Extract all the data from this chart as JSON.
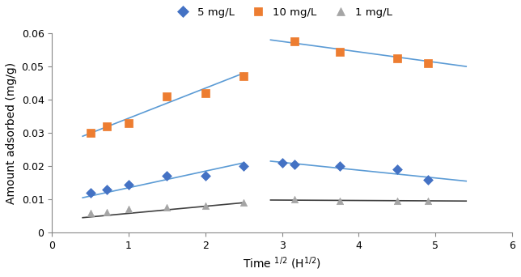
{
  "xlabel": "Time $^{1/2}$ (H$^{1/2}$)",
  "ylabel": "Amount adsorbed (mg/g)",
  "xlim": [
    0,
    6
  ],
  "ylim": [
    0,
    0.06
  ],
  "yticks": [
    0,
    0.01,
    0.02,
    0.03,
    0.04,
    0.05,
    0.06
  ],
  "xticks": [
    0,
    1,
    2,
    3,
    4,
    5,
    6
  ],
  "series_5mgL": {
    "label": "5 mg/L",
    "color": "#4472C4",
    "marker": "D",
    "markersize": 6,
    "x": [
      0.5,
      0.71,
      1.0,
      1.5,
      2.0,
      2.5,
      3.0,
      3.16,
      3.75,
      4.5,
      4.9
    ],
    "y": [
      0.012,
      0.013,
      0.0145,
      0.017,
      0.017,
      0.02,
      0.021,
      0.0205,
      0.02,
      0.019,
      0.016
    ]
  },
  "line_5mgL_seg1": {
    "color": "#5B9BD5",
    "x": [
      0.4,
      2.5
    ],
    "y": [
      0.0105,
      0.021
    ]
  },
  "line_5mgL_seg2": {
    "color": "#5B9BD5",
    "x": [
      2.85,
      5.4
    ],
    "y": [
      0.0215,
      0.0155
    ]
  },
  "series_10mgL": {
    "label": "10 mg/L",
    "color": "#ED7D31",
    "marker": "s",
    "markersize": 7,
    "x": [
      0.5,
      0.71,
      1.0,
      1.5,
      2.0,
      2.5,
      3.16,
      3.75,
      4.5,
      4.9
    ],
    "y": [
      0.03,
      0.032,
      0.033,
      0.041,
      0.042,
      0.047,
      0.0575,
      0.0545,
      0.0525,
      0.051
    ]
  },
  "line_10mgL_seg1": {
    "color": "#5B9BD5",
    "x": [
      0.4,
      2.5
    ],
    "y": [
      0.029,
      0.048
    ]
  },
  "line_10mgL_seg2": {
    "color": "#5B9BD5",
    "x": [
      2.85,
      5.4
    ],
    "y": [
      0.058,
      0.05
    ]
  },
  "series_1mgL": {
    "label": "1 mg/L",
    "color": "#A5A5A5",
    "marker": "^",
    "markersize": 6,
    "x": [
      0.5,
      0.71,
      1.0,
      1.5,
      2.0,
      2.5,
      3.16,
      3.75,
      4.5,
      4.9
    ],
    "y": [
      0.006,
      0.0062,
      0.007,
      0.0075,
      0.008,
      0.009,
      0.01,
      0.0095,
      0.0095,
      0.0095
    ]
  },
  "line_1mgL_seg1": {
    "color": "#404040",
    "x": [
      0.4,
      2.5
    ],
    "y": [
      0.0045,
      0.009
    ]
  },
  "line_1mgL_seg2": {
    "color": "#404040",
    "x": [
      2.85,
      5.4
    ],
    "y": [
      0.0098,
      0.0095
    ]
  },
  "background_color": "#FFFFFF",
  "legend_fontsize": 9.5,
  "axis_fontsize": 10,
  "tick_fontsize": 9
}
